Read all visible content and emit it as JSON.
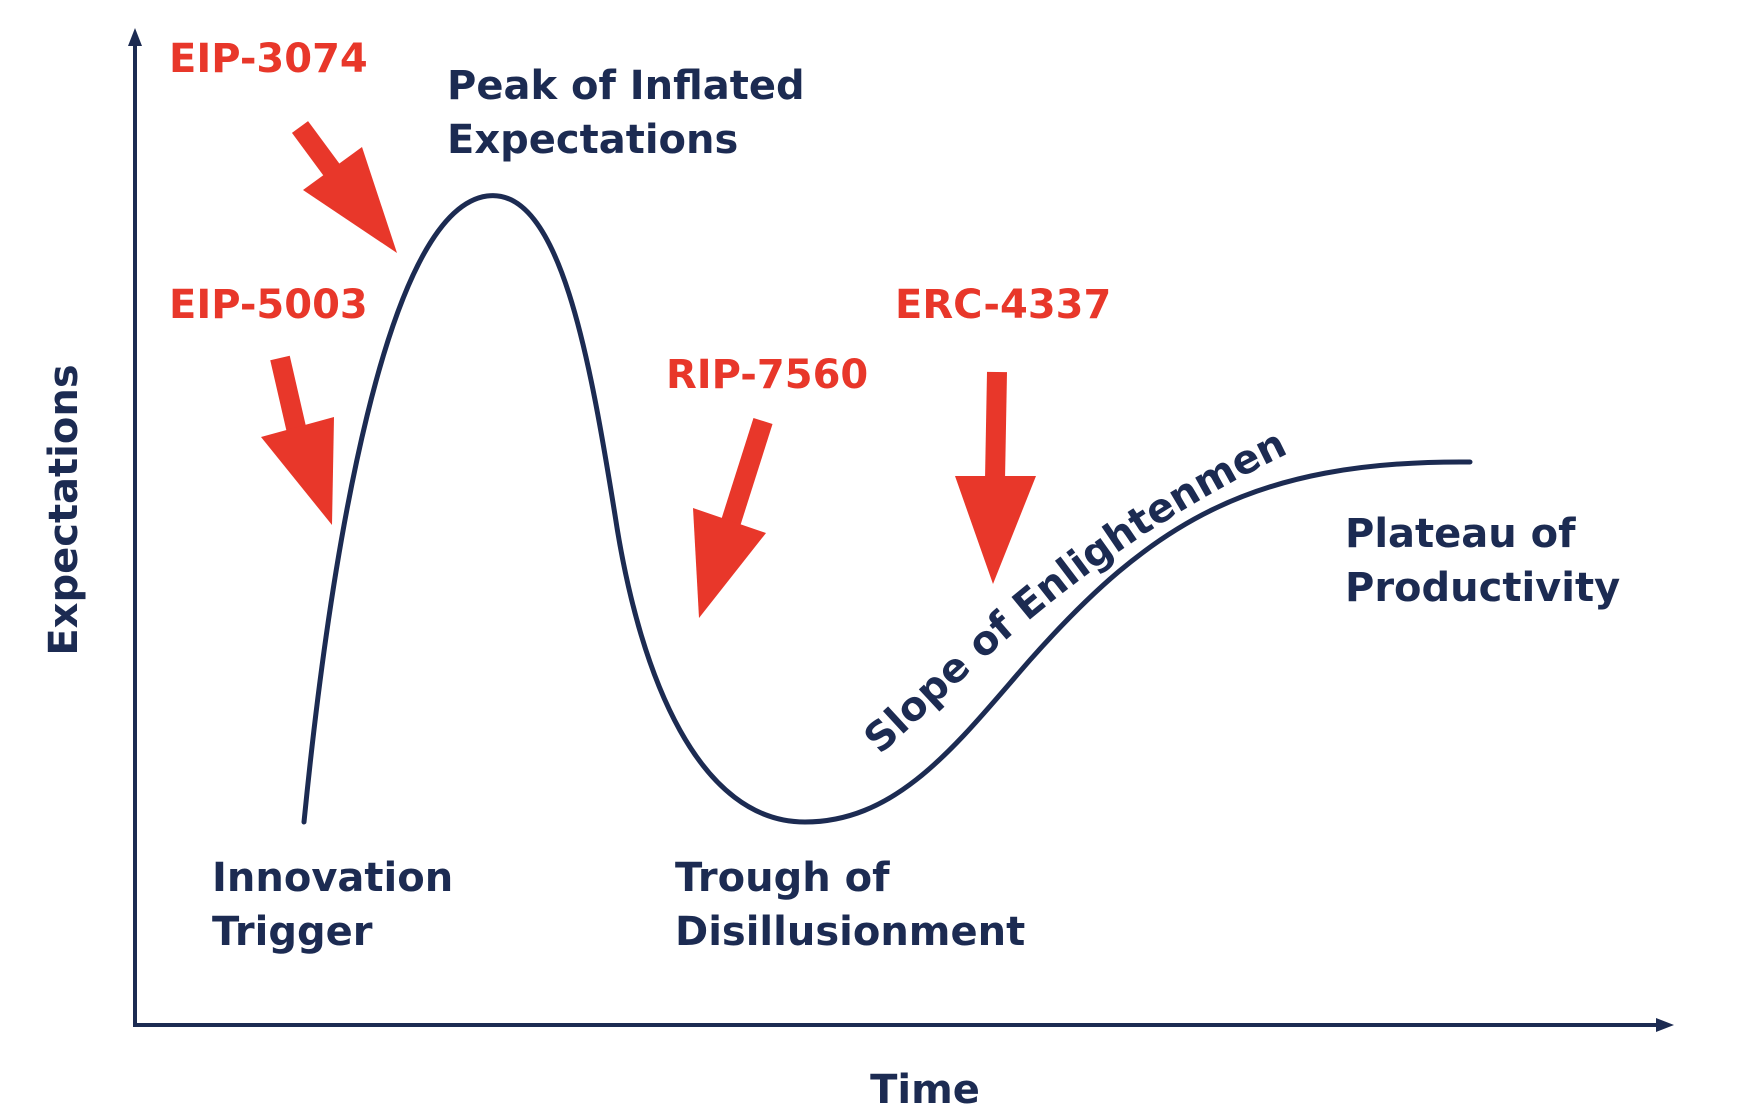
{
  "axes": {
    "y_label": "Expectations",
    "x_label": "Time"
  },
  "phases": {
    "innovation_trigger": [
      "Innovation",
      "Trigger"
    ],
    "peak": [
      "Peak of Inflated",
      "Expectations"
    ],
    "trough": [
      "Trough of",
      "Disillusionment"
    ],
    "slope": "Slope of Enlightenment",
    "plateau": [
      "Plateau of",
      "Productivity"
    ]
  },
  "proposals": [
    {
      "id": "eip-3074",
      "label": "EIP-3074"
    },
    {
      "id": "eip-5003",
      "label": "EIP-5003"
    },
    {
      "id": "rip-7560",
      "label": "RIP-7560"
    },
    {
      "id": "erc-4337",
      "label": "ERC-4337"
    }
  ],
  "colors": {
    "curve": "#1c2b52",
    "text": "#1c2b52",
    "accent": "#e8372a",
    "background": "#ffffff"
  }
}
